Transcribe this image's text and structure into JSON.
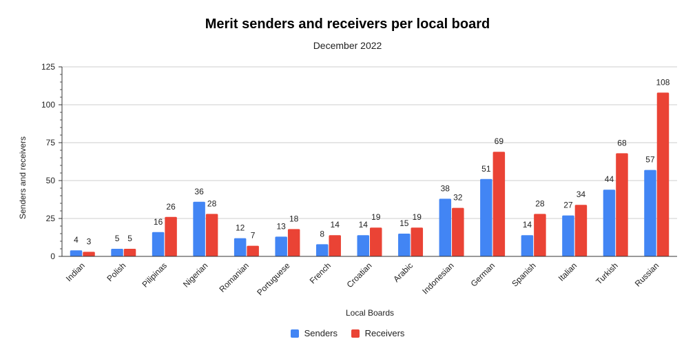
{
  "chart_data": {
    "type": "bar",
    "title": "Merit senders and receivers per local board",
    "subtitle": "December 2022",
    "xlabel": "Local Boards",
    "ylabel": "Senders and receivers",
    "ylim": [
      0,
      125
    ],
    "yticks": [
      0,
      25,
      50,
      75,
      100,
      125
    ],
    "grid": true,
    "legend_position": "bottom",
    "categories": [
      "Indian",
      "Polish",
      "Pilipinas",
      "Nigerian",
      "Romanian",
      "Portuguese",
      "French",
      "Croatian",
      "Arabic",
      "Indonesian",
      "German",
      "Spanish",
      "Italian",
      "Turkish",
      "Russian"
    ],
    "series": [
      {
        "name": "Senders",
        "color": "#4285f4",
        "values": [
          4,
          5,
          16,
          36,
          12,
          13,
          8,
          14,
          15,
          38,
          51,
          14,
          27,
          44,
          57
        ]
      },
      {
        "name": "Receivers",
        "color": "#ea4335",
        "values": [
          3,
          5,
          26,
          28,
          7,
          18,
          14,
          19,
          19,
          32,
          69,
          28,
          34,
          68,
          108
        ]
      }
    ]
  }
}
